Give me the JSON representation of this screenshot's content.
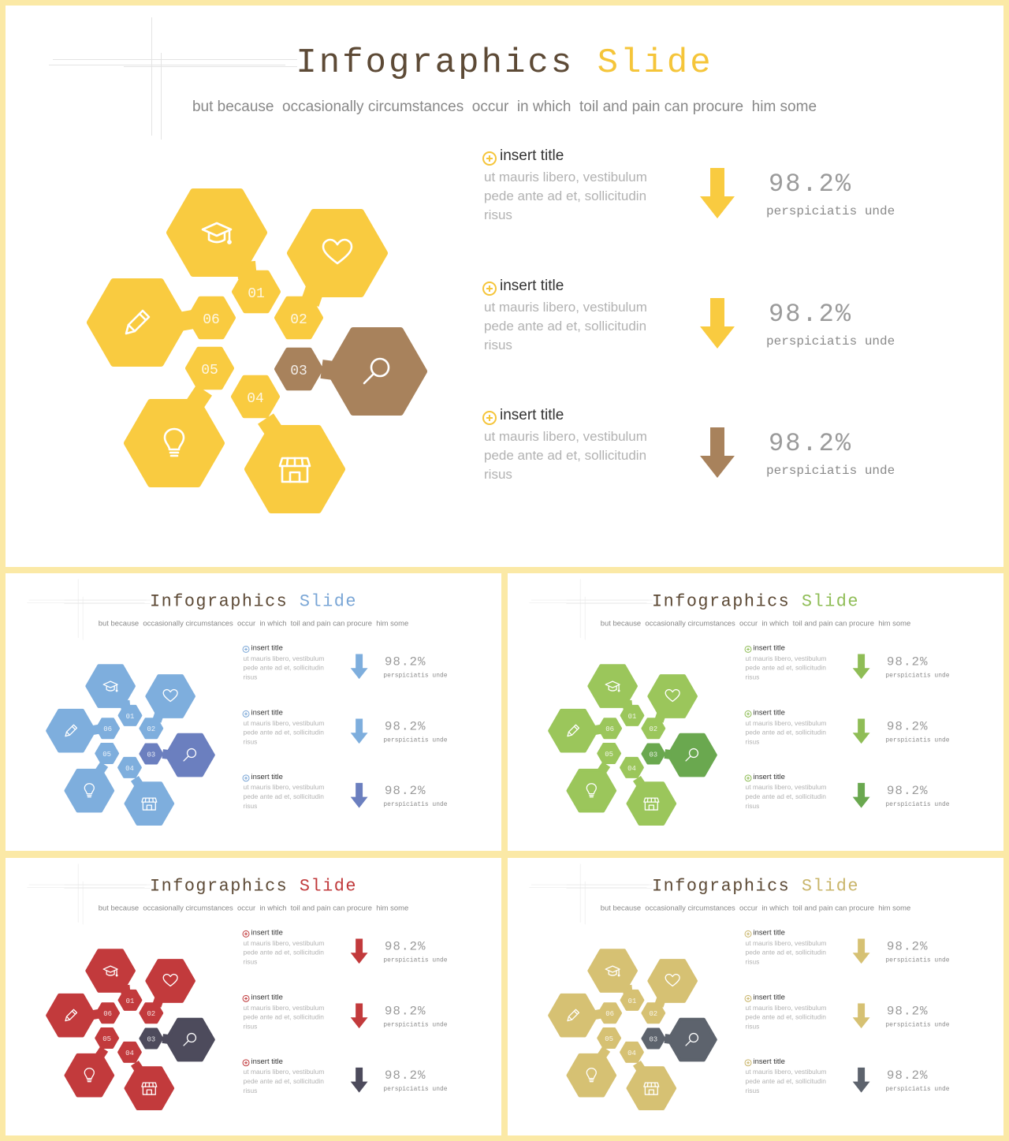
{
  "slides": [
    {
      "id": "main",
      "title_part1": "Infographics",
      "title_part2": "Slide",
      "subtitle": "but because  occasionally circumstances  occur  in which  toil and pain can procure  him some",
      "colors": {
        "title_accent": "#f5c53a",
        "primary": "#f9cb40",
        "highlight": "#a8825c",
        "arrows": [
          "#f9cb40",
          "#f9cb40",
          "#a8825c"
        ],
        "plus": "#f5c53a"
      },
      "hexagons": [
        {
          "number": "01",
          "icon": "graduation-cap-icon"
        },
        {
          "number": "02",
          "icon": "heart-icon"
        },
        {
          "number": "03",
          "icon": "search-icon"
        },
        {
          "number": "04",
          "icon": "store-icon"
        },
        {
          "number": "05",
          "icon": "lightbulb-icon"
        },
        {
          "number": "06",
          "icon": "pencil-icon"
        }
      ],
      "items": [
        {
          "title": "insert title",
          "description": "ut mauris libero, vestibulum pede ante ad et, sollicitudin risus",
          "value": "98.2%",
          "label": "perspiciatis unde"
        },
        {
          "title": "insert title",
          "description": "ut mauris libero, vestibulum pede ante ad et, sollicitudin risus",
          "value": "98.2%",
          "label": "perspiciatis unde"
        },
        {
          "title": "insert title",
          "description": "ut mauris libero, vestibulum pede ante ad et, sollicitudin risus",
          "value": "98.2%",
          "label": "perspiciatis unde"
        }
      ]
    },
    {
      "id": "blue",
      "title_part1": "Infographics",
      "title_part2": "Slide",
      "subtitle": "but because  occasionally circumstances  occur  in which  toil and pain can procure  him some",
      "colors": {
        "title_accent": "#7aa6d6",
        "primary": "#7eaedd",
        "highlight": "#6b7fbf",
        "arrows": [
          "#7eaedd",
          "#7eaedd",
          "#6b7fbf"
        ],
        "plus": "#7aa6d6"
      },
      "hexagons": [
        {
          "number": "01",
          "icon": "graduation-cap-icon"
        },
        {
          "number": "02",
          "icon": "heart-icon"
        },
        {
          "number": "03",
          "icon": "search-icon"
        },
        {
          "number": "04",
          "icon": "store-icon"
        },
        {
          "number": "05",
          "icon": "lightbulb-icon"
        },
        {
          "number": "06",
          "icon": "pencil-icon"
        }
      ],
      "items": [
        {
          "title": "insert title",
          "description": "ut mauris libero, vestibulum pede ante ad et, sollicitudin risus",
          "value": "98.2%",
          "label": "perspiciatis unde"
        },
        {
          "title": "insert title",
          "description": "ut mauris libero, vestibulum pede ante ad et, sollicitudin risus",
          "value": "98.2%",
          "label": "perspiciatis unde"
        },
        {
          "title": "insert title",
          "description": "ut mauris libero, vestibulum pede ante ad et, sollicitudin risus",
          "value": "98.2%",
          "label": "perspiciatis unde"
        }
      ]
    },
    {
      "id": "green",
      "title_part1": "Infographics",
      "title_part2": "Slide",
      "subtitle": "but because  occasionally circumstances  occur  in which  toil and pain can procure  him some",
      "colors": {
        "title_accent": "#8fbd56",
        "primary": "#9bc65b",
        "highlight": "#6aa84f",
        "arrows": [
          "#8fbd56",
          "#8fbd56",
          "#6aa84f"
        ],
        "plus": "#8fbd56"
      },
      "hexagons": [
        {
          "number": "01",
          "icon": "graduation-cap-icon"
        },
        {
          "number": "02",
          "icon": "heart-icon"
        },
        {
          "number": "03",
          "icon": "search-icon"
        },
        {
          "number": "04",
          "icon": "store-icon"
        },
        {
          "number": "05",
          "icon": "lightbulb-icon"
        },
        {
          "number": "06",
          "icon": "pencil-icon"
        }
      ],
      "items": [
        {
          "title": "insert title",
          "description": "ut mauris libero, vestibulum pede ante ad et, sollicitudin risus",
          "value": "98.2%",
          "label": "perspiciatis unde"
        },
        {
          "title": "insert title",
          "description": "ut mauris libero, vestibulum pede ante ad et, sollicitudin risus",
          "value": "98.2%",
          "label": "perspiciatis unde"
        },
        {
          "title": "insert title",
          "description": "ut mauris libero, vestibulum pede ante ad et, sollicitudin risus",
          "value": "98.2%",
          "label": "perspiciatis unde"
        }
      ]
    },
    {
      "id": "red",
      "title_part1": "Infographics",
      "title_part2": "Slide",
      "subtitle": "but because  occasionally circumstances  occur  in which  toil and pain can procure  him some",
      "colors": {
        "title_accent": "#c0393b",
        "primary": "#c23a3c",
        "highlight": "#4d4b5c",
        "arrows": [
          "#c23a3c",
          "#c23a3c",
          "#4d4b5c"
        ],
        "plus": "#c0393b"
      },
      "hexagons": [
        {
          "number": "01",
          "icon": "graduation-cap-icon"
        },
        {
          "number": "02",
          "icon": "heart-icon"
        },
        {
          "number": "03",
          "icon": "search-icon"
        },
        {
          "number": "04",
          "icon": "store-icon"
        },
        {
          "number": "05",
          "icon": "lightbulb-icon"
        },
        {
          "number": "06",
          "icon": "pencil-icon"
        }
      ],
      "items": [
        {
          "title": "insert title",
          "description": "ut mauris libero, vestibulum pede ante ad et, sollicitudin risus",
          "value": "98.2%",
          "label": "perspiciatis unde"
        },
        {
          "title": "insert title",
          "description": "ut mauris libero, vestibulum pede ante ad et, sollicitudin risus",
          "value": "98.2%",
          "label": "perspiciatis unde"
        },
        {
          "title": "insert title",
          "description": "ut mauris libero, vestibulum pede ante ad et, sollicitudin risus",
          "value": "98.2%",
          "label": "perspiciatis unde"
        }
      ]
    },
    {
      "id": "gold",
      "title_part1": "Infographics",
      "title_part2": "Slide",
      "subtitle": "but because  occasionally circumstances  occur  in which  toil and pain can procure  him some",
      "colors": {
        "title_accent": "#c9b56a",
        "primary": "#d6c173",
        "highlight": "#5d636d",
        "arrows": [
          "#d6c173",
          "#d6c173",
          "#5d636d"
        ],
        "plus": "#c9b56a"
      },
      "hexagons": [
        {
          "number": "01",
          "icon": "graduation-cap-icon"
        },
        {
          "number": "02",
          "icon": "heart-icon"
        },
        {
          "number": "03",
          "icon": "search-icon"
        },
        {
          "number": "04",
          "icon": "store-icon"
        },
        {
          "number": "05",
          "icon": "lightbulb-icon"
        },
        {
          "number": "06",
          "icon": "pencil-icon"
        }
      ],
      "items": [
        {
          "title": "insert title",
          "description": "ut mauris libero, vestibulum pede ante ad et, sollicitudin risus",
          "value": "98.2%",
          "label": "perspiciatis unde"
        },
        {
          "title": "insert title",
          "description": "ut mauris libero, vestibulum pede ante ad et, sollicitudin risus",
          "value": "98.2%",
          "label": "perspiciatis unde"
        },
        {
          "title": "insert title",
          "description": "ut mauris libero, vestibulum pede ante ad et, sollicitudin risus",
          "value": "98.2%",
          "label": "perspiciatis unde"
        }
      ]
    }
  ]
}
